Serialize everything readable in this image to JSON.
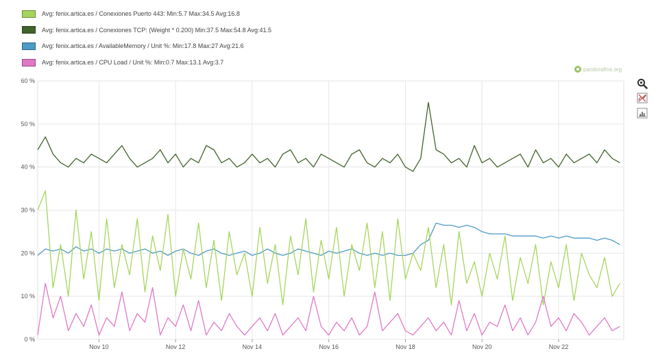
{
  "legend": [
    {
      "label": "Avg: fenix.artica.es / Conexiones Puerto 443: Min:5.7 Max:34.5 Avg:16.8",
      "color": "#a6d55b"
    },
    {
      "label": "Avg: fenix.artica.es / Conexiones TCP: (Weight * 0.200) Min:37.5 Max:54.8 Avg:41.5",
      "color": "#41622a"
    },
    {
      "label": "Avg: fenix.artica.es / AvailableMemory / Unit %: Min:17.8 Max:27 Avg:21.6",
      "color": "#4d9ac7"
    },
    {
      "label": "Avg: fenix.artica.es / CPU Load / Unit %: Min:0.7 Max:13.1 Avg:3.7",
      "color": "#e078c6"
    }
  ],
  "brand": {
    "text": "pandorafms.org",
    "icon": "pandora-logo-icon"
  },
  "toolbar": [
    {
      "name": "zoom-icon"
    },
    {
      "name": "zoom-reset-icon"
    },
    {
      "name": "chart-view-icon"
    }
  ],
  "chart_data": {
    "type": "line",
    "xlabel": "",
    "ylabel": "",
    "ylim": [
      0,
      60
    ],
    "xlim": [
      8.4,
      23.7
    ],
    "x_unit": "day of November",
    "y_ticks": [
      "0 %",
      "10 %",
      "20 %",
      "30 %",
      "40 %",
      "50 %",
      "60 %"
    ],
    "y_tick_values": [
      0,
      10,
      20,
      30,
      40,
      50,
      60
    ],
    "x_ticks": [
      "Nov 10",
      "Nov 12",
      "Nov 14",
      "Nov 16",
      "Nov 18",
      "Nov 20",
      "Nov 22"
    ],
    "x_tick_values": [
      10,
      12,
      14,
      16,
      18,
      20,
      22
    ],
    "grid": true,
    "legend_position": "top-left",
    "series": [
      {
        "name": "Avg: fenix.artica.es / Conexiones TCP: (Weight * 0.200)",
        "color": "#41622a",
        "x": [
          8.4,
          8.6,
          8.8,
          9.0,
          9.2,
          9.4,
          9.6,
          9.8,
          10.0,
          10.2,
          10.4,
          10.6,
          10.8,
          11.0,
          11.2,
          11.4,
          11.6,
          11.8,
          12.0,
          12.2,
          12.4,
          12.6,
          12.8,
          13.0,
          13.2,
          13.4,
          13.6,
          13.8,
          14.0,
          14.2,
          14.4,
          14.6,
          14.8,
          15.0,
          15.2,
          15.4,
          15.6,
          15.8,
          16.0,
          16.2,
          16.4,
          16.6,
          16.8,
          17.0,
          17.2,
          17.4,
          17.6,
          17.8,
          18.0,
          18.2,
          18.4,
          18.6,
          18.8,
          19.0,
          19.2,
          19.4,
          19.6,
          19.8,
          20.0,
          20.2,
          20.4,
          20.6,
          20.8,
          21.0,
          21.2,
          21.4,
          21.6,
          21.8,
          22.0,
          22.2,
          22.4,
          22.6,
          22.8,
          23.0,
          23.2,
          23.4,
          23.6
        ],
        "values": [
          44,
          47,
          43,
          41,
          40,
          42,
          41,
          43,
          42,
          41,
          43,
          45,
          42,
          40,
          41,
          42,
          44,
          41,
          43,
          40,
          42,
          41,
          45,
          44,
          41,
          42,
          40,
          41,
          43,
          41,
          42,
          40,
          43,
          44,
          41,
          42,
          40,
          43,
          42,
          41,
          40,
          43,
          44,
          41,
          40,
          42,
          41,
          43,
          40,
          39,
          42,
          55,
          44,
          43,
          41,
          42,
          40,
          45,
          41,
          42,
          40,
          41,
          42,
          43,
          40,
          44,
          41,
          42,
          40,
          43,
          41,
          42,
          43,
          41,
          44,
          42,
          41
        ]
      },
      {
        "name": "Avg: fenix.artica.es / AvailableMemory / Unit %",
        "color": "#4d9ac7",
        "x": [
          8.4,
          8.6,
          8.8,
          9.0,
          9.2,
          9.4,
          9.6,
          9.8,
          10.0,
          10.2,
          10.4,
          10.6,
          10.8,
          11.0,
          11.2,
          11.4,
          11.6,
          11.8,
          12.0,
          12.2,
          12.4,
          12.6,
          12.8,
          13.0,
          13.2,
          13.4,
          13.6,
          13.8,
          14.0,
          14.2,
          14.4,
          14.6,
          14.8,
          15.0,
          15.2,
          15.4,
          15.6,
          15.8,
          16.0,
          16.2,
          16.4,
          16.6,
          16.8,
          17.0,
          17.2,
          17.4,
          17.6,
          17.8,
          18.0,
          18.2,
          18.4,
          18.6,
          18.8,
          19.0,
          19.2,
          19.4,
          19.6,
          19.8,
          20.0,
          20.2,
          20.4,
          20.6,
          20.8,
          21.0,
          21.2,
          21.4,
          21.6,
          21.8,
          22.0,
          22.2,
          22.4,
          22.6,
          22.8,
          23.0,
          23.2,
          23.4,
          23.6
        ],
        "values": [
          19.5,
          21,
          20.5,
          21,
          20,
          21.5,
          20.5,
          21,
          20,
          21,
          20.5,
          21,
          20,
          20.5,
          21,
          20,
          20.5,
          19.5,
          20.5,
          21,
          20,
          19.5,
          20.5,
          21,
          20,
          19.5,
          20,
          20.5,
          19.5,
          20,
          21,
          20,
          19.5,
          20,
          21,
          20.5,
          20,
          19.5,
          20.5,
          20,
          20.5,
          21,
          20,
          19.5,
          20,
          19.5,
          20,
          19.5,
          19.5,
          20,
          22,
          23,
          27,
          26.5,
          26.5,
          26,
          26.5,
          26,
          25,
          24.5,
          24.5,
          24.5,
          24,
          24,
          24,
          24,
          23.5,
          24,
          23.5,
          24,
          23.5,
          23.5,
          23.5,
          23,
          23.5,
          23,
          22
        ]
      },
      {
        "name": "Avg: fenix.artica.es / Conexiones Puerto 443",
        "color": "#a6d55b",
        "x": [
          8.4,
          8.6,
          8.8,
          9.0,
          9.2,
          9.4,
          9.6,
          9.8,
          10.0,
          10.2,
          10.4,
          10.6,
          10.8,
          11.0,
          11.2,
          11.4,
          11.6,
          11.8,
          12.0,
          12.2,
          12.4,
          12.6,
          12.8,
          13.0,
          13.2,
          13.4,
          13.6,
          13.8,
          14.0,
          14.2,
          14.4,
          14.6,
          14.8,
          15.0,
          15.2,
          15.4,
          15.6,
          15.8,
          16.0,
          16.2,
          16.4,
          16.6,
          16.8,
          17.0,
          17.2,
          17.4,
          17.6,
          17.8,
          18.0,
          18.2,
          18.4,
          18.6,
          18.8,
          19.0,
          19.2,
          19.4,
          19.6,
          19.8,
          20.0,
          20.2,
          20.4,
          20.6,
          20.8,
          21.0,
          21.2,
          21.4,
          21.6,
          21.8,
          22.0,
          22.2,
          22.4,
          22.6,
          22.8,
          23.0,
          23.2,
          23.4,
          23.6
        ],
        "values": [
          30,
          34.5,
          12,
          22,
          10,
          30,
          14,
          25,
          9,
          28,
          12,
          22,
          15,
          28,
          11,
          24,
          16,
          29,
          10,
          21,
          14,
          27,
          12,
          23,
          9,
          25,
          15,
          20,
          10,
          26,
          13,
          22,
          8,
          24,
          15,
          28,
          11,
          23,
          14,
          26,
          10,
          22,
          16,
          27,
          12,
          25,
          9,
          28,
          14,
          20,
          16,
          26,
          12,
          22,
          8,
          25,
          13,
          18,
          10,
          20,
          14,
          24,
          9,
          19,
          13,
          22,
          8,
          18,
          12,
          22,
          9,
          20,
          15,
          12,
          19,
          10,
          13
        ]
      },
      {
        "name": "Avg: fenix.artica.es / CPU Load / Unit %",
        "color": "#e078c6",
        "x": [
          8.4,
          8.6,
          8.8,
          9.0,
          9.2,
          9.4,
          9.6,
          9.8,
          10.0,
          10.2,
          10.4,
          10.6,
          10.8,
          11.0,
          11.2,
          11.4,
          11.6,
          11.8,
          12.0,
          12.2,
          12.4,
          12.6,
          12.8,
          13.0,
          13.2,
          13.4,
          13.6,
          13.8,
          14.0,
          14.2,
          14.4,
          14.6,
          14.8,
          15.0,
          15.2,
          15.4,
          15.6,
          15.8,
          16.0,
          16.2,
          16.4,
          16.6,
          16.8,
          17.0,
          17.2,
          17.4,
          17.6,
          17.8,
          18.0,
          18.2,
          18.4,
          18.6,
          18.8,
          19.0,
          19.2,
          19.4,
          19.6,
          19.8,
          20.0,
          20.2,
          20.4,
          20.6,
          20.8,
          21.0,
          21.2,
          21.4,
          21.6,
          21.8,
          22.0,
          22.2,
          22.4,
          22.6,
          22.8,
          23.0,
          23.2,
          23.4,
          23.6
        ],
        "values": [
          1,
          13,
          5,
          10,
          2,
          6,
          3,
          8,
          1,
          5,
          3,
          11,
          2,
          6,
          4,
          12,
          1,
          5,
          3,
          8,
          2,
          9,
          1,
          4,
          2,
          6,
          3,
          1,
          3,
          5,
          2,
          6,
          1,
          3,
          5,
          2,
          10,
          3,
          1,
          4,
          2,
          5,
          1,
          3,
          11,
          2,
          4,
          6,
          2,
          1,
          3,
          5,
          2,
          4,
          1,
          9,
          2,
          6,
          1,
          4,
          3,
          8,
          2,
          5,
          1,
          4,
          10,
          3,
          5,
          2,
          6,
          4,
          1,
          3,
          5,
          2,
          3
        ]
      }
    ]
  }
}
